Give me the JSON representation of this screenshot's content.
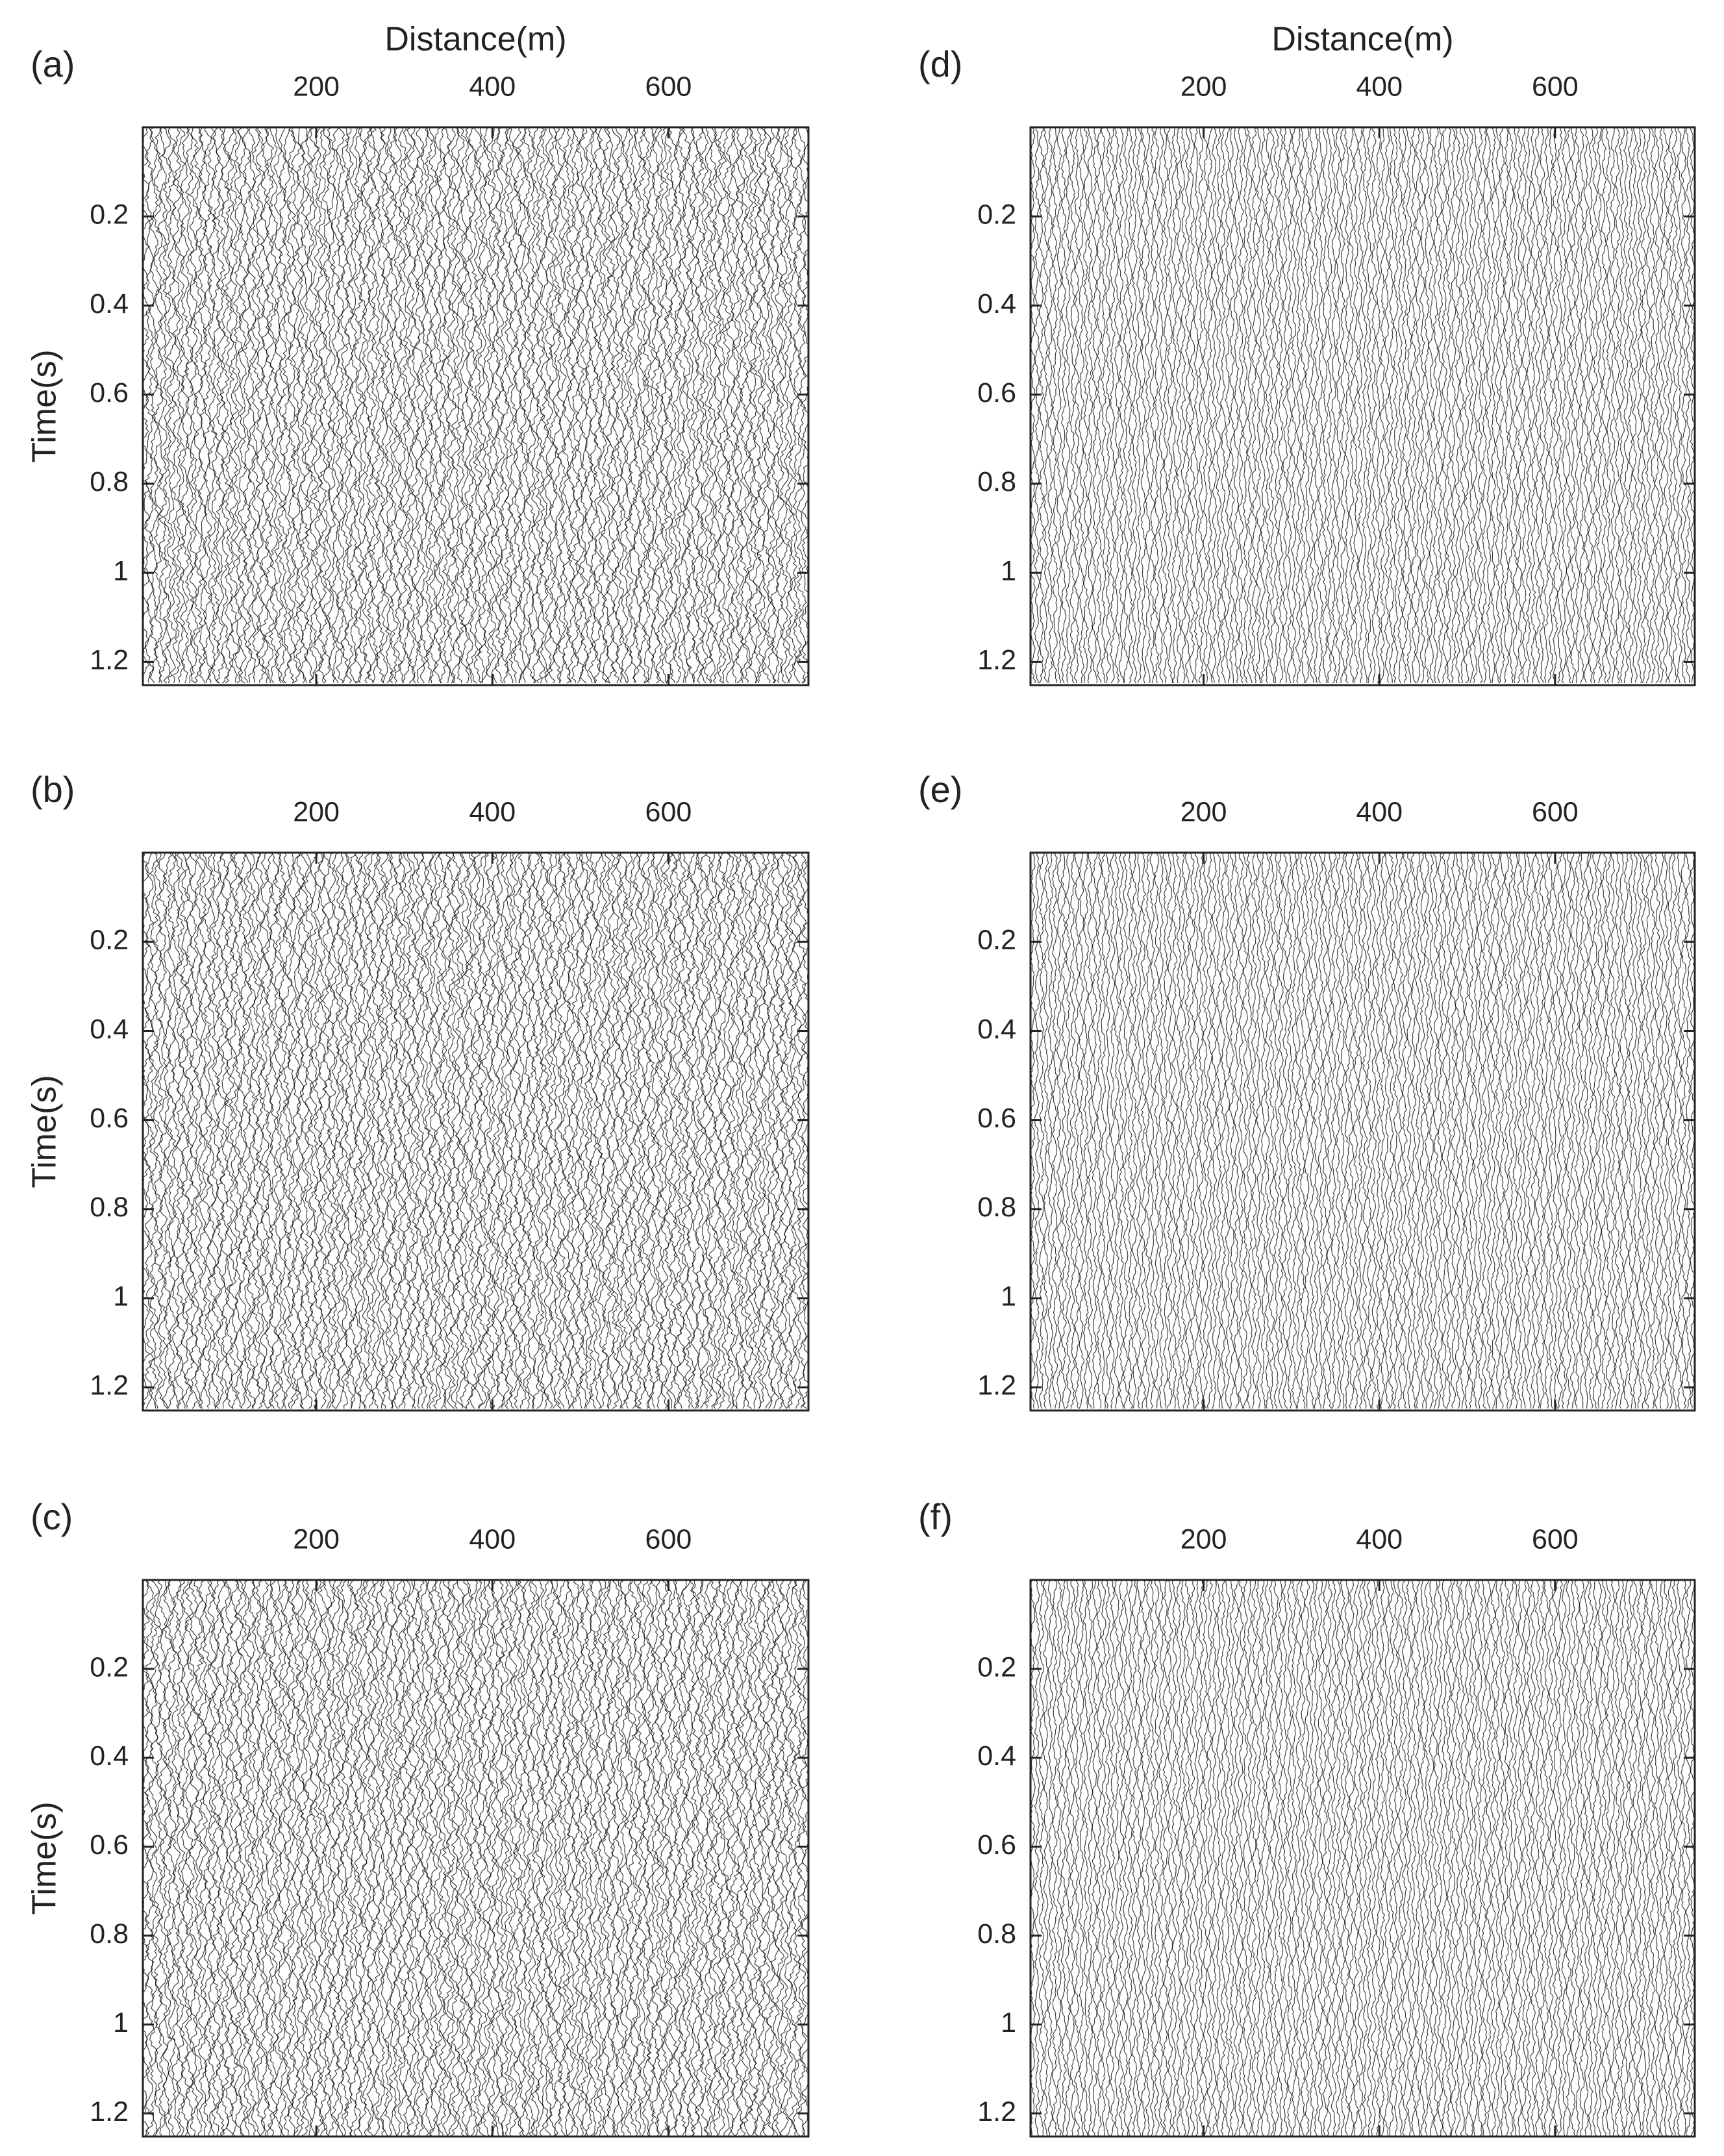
{
  "chart_data": [
    {
      "type": "seismic",
      "panel_label": "(a)",
      "xlabel": "Distance(m)",
      "ylabel": "Time(s)",
      "xlim": [
        3,
        759
      ],
      "ylim": [
        0,
        1.252
      ],
      "xticks": [
        200,
        400,
        600
      ],
      "yticks": [
        0.2,
        0.4,
        0.6,
        0.8,
        1,
        1.2
      ]
    },
    {
      "type": "seismic",
      "panel_label": "(b)",
      "ylabel": "Time(s)",
      "xlim": [
        3,
        759
      ],
      "ylim": [
        0,
        1.252
      ],
      "xticks": [
        200,
        400,
        600
      ],
      "yticks": [
        0.2,
        0.4,
        0.6,
        0.8,
        1,
        1.2
      ]
    },
    {
      "type": "seismic",
      "panel_label": "(c)",
      "ylabel": "Time(s)",
      "xlim": [
        3,
        759
      ],
      "ylim": [
        0,
        1.252
      ],
      "xticks": [
        200,
        400,
        600
      ],
      "yticks": [
        0.2,
        0.4,
        0.6,
        0.8,
        1,
        1.2
      ]
    },
    {
      "type": "seismic",
      "panel_label": "(d)",
      "xlabel": "Distance(m)",
      "xlim": [
        3,
        759
      ],
      "ylim": [
        0,
        1.252
      ],
      "xticks": [
        200,
        400,
        600
      ],
      "yticks": [
        0.2,
        0.4,
        0.6,
        0.8,
        1,
        1.2
      ]
    },
    {
      "type": "seismic",
      "panel_label": "(e)",
      "xlim": [
        3,
        759
      ],
      "ylim": [
        0,
        1.252
      ],
      "xticks": [
        200,
        400,
        600
      ],
      "yticks": [
        0.2,
        0.4,
        0.6,
        0.8,
        1,
        1.2
      ]
    },
    {
      "type": "seismic",
      "panel_label": "(f)",
      "xlim": [
        3,
        759
      ],
      "ylim": [
        0,
        1.252
      ],
      "xticks": [
        200,
        400,
        600
      ],
      "yticks": [
        0.2,
        0.4,
        0.6,
        0.8,
        1,
        1.2
      ]
    }
  ]
}
